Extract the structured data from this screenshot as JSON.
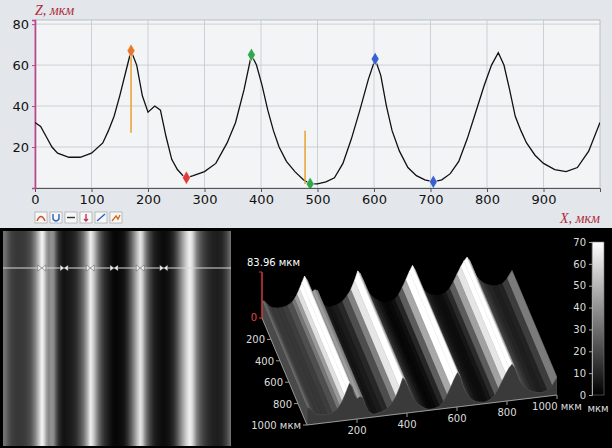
{
  "chart_data": [
    {
      "type": "line",
      "x_label": "X, мкм",
      "y_label": "Z, мкм",
      "color": "#111111",
      "x": [
        0,
        10,
        20,
        30,
        40,
        60,
        80,
        100,
        120,
        130,
        140,
        150,
        160,
        170,
        180,
        190,
        200,
        212,
        222,
        232,
        242,
        252,
        262,
        268,
        280,
        300,
        320,
        340,
        355,
        370,
        383,
        392,
        402,
        412,
        422,
        432,
        445,
        460,
        475,
        487,
        500,
        515,
        530,
        545,
        560,
        575,
        590,
        602,
        612,
        622,
        632,
        645,
        660,
        675,
        690,
        705,
        720,
        735,
        750,
        765,
        780,
        795,
        808,
        820,
        830,
        840,
        850,
        860,
        870,
        885,
        900,
        920,
        940,
        960,
        980,
        1000
      ],
      "values": [
        32,
        30,
        25,
        20,
        17,
        15,
        15,
        17,
        22,
        28,
        35,
        45,
        56,
        67,
        60,
        45,
        37,
        40,
        38,
        25,
        14,
        9,
        6,
        5,
        6,
        8,
        12,
        22,
        32,
        48,
        65,
        60,
        50,
        38,
        28,
        20,
        13,
        8,
        4,
        2,
        2,
        3,
        5,
        12,
        24,
        38,
        53,
        63,
        55,
        40,
        28,
        18,
        10,
        6,
        4,
        3,
        4,
        7,
        13,
        24,
        37,
        50,
        60,
        66,
        60,
        48,
        35,
        28,
        22,
        16,
        12,
        9,
        8,
        10,
        18,
        32
      ],
      "xlim": [
        0,
        1000
      ],
      "ylim": [
        0,
        82
      ],
      "xticks": [
        0,
        100,
        200,
        300,
        400,
        500,
        600,
        700,
        800,
        900
      ],
      "yticks": [
        20,
        40,
        60,
        80
      ],
      "grid": true,
      "markers": {
        "x": [
          170,
          268,
          383,
          487,
          602,
          705
        ],
        "y": [
          67,
          5,
          65,
          2,
          63,
          3
        ],
        "colors": [
          "#e8762c",
          "#e23a3a",
          "#2fa84f",
          "#2fa84f",
          "#3a5fcf",
          "#3a5fcf"
        ]
      },
      "cursors": {
        "x": [
          170,
          478
        ],
        "y_from": [
          27,
          2
        ],
        "y_to": [
          67,
          28
        ]
      }
    },
    {
      "type": "surface",
      "xlim": [
        0,
        1000
      ],
      "ylim": [
        0,
        1000
      ],
      "zlim": [
        0,
        83.96
      ],
      "xticks": [
        200,
        400,
        600,
        800,
        {
          "value": 1000,
          "label": "1000 мкм"
        }
      ],
      "yticks": [
        200,
        400,
        600,
        800,
        {
          "value": 1000,
          "label": "1000 мкм"
        }
      ],
      "zticks": [
        0,
        {
          "value": 83.96,
          "label": "83.96 мкм"
        }
      ],
      "color_range": [
        0,
        70
      ],
      "color_ticks": [
        0,
        10,
        20,
        30,
        40,
        50,
        60,
        70
      ],
      "color_label": "мкм"
    }
  ]
}
